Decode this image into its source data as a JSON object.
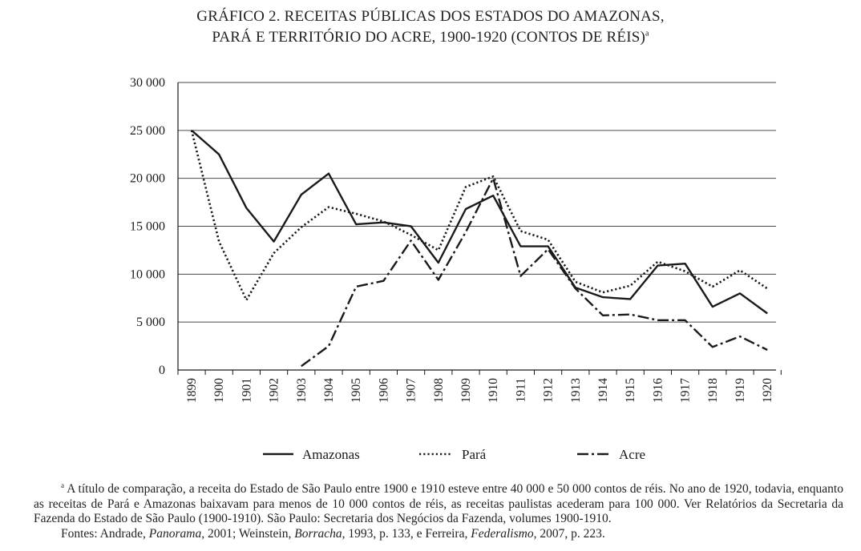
{
  "page": {
    "title_line1": "GRÁFICO 2. RECEITAS PÚBLICAS DOS ESTADOS DO AMAZONAS,",
    "title_line2": "PARÁ E TERRITÓRIO DO ACRE, 1900-1920 (CONTOS DE RÉIS)",
    "title_footnote_marker": "a",
    "footnote_marker": "a",
    "footnote_text": "A título de comparação, a receita do Estado de São Paulo entre 1900 e 1910 esteve entre 40 000 e 50 000 contos de réis. No ano de 1920, todavia, enquanto as receitas de Pará e Amazonas baixavam para menos de 10 000 contos de réis, as receitas paulistas acederam para 100 000. Ver Relatórios da Secretaria da Fazenda do Estado de São Paulo (1900-1910). São Paulo: Secretaria dos Negócios da Fazenda, volumes 1900-1910.",
    "sources_prefix": "Fontes: Andrade, ",
    "source1_title": "Panorama",
    "source1_rest": ", 2001; Weinstein, ",
    "source2_title": "Borracha",
    "source2_rest": ", 1993, p. 133, e Ferreira, ",
    "source3_title": "Federalismo",
    "source3_rest": ", 2007, p. 223."
  },
  "chart_data": {
    "type": "line",
    "title": "GRÁFICO 2. RECEITAS PÚBLICAS DOS ESTADOS DO AMAZONAS, PARÁ E TERRITÓRIO DO ACRE, 1900-1920 (CONTOS DE RÉIS)",
    "xlabel": "",
    "ylabel": "",
    "x": [
      "1899",
      "1900",
      "1901",
      "1902",
      "1903",
      "1904",
      "1905",
      "1906",
      "1907",
      "1908",
      "1909",
      "1910",
      "1911",
      "1912",
      "1913",
      "1914",
      "1915",
      "1916",
      "1917",
      "1918",
      "1919",
      "1920"
    ],
    "ylim": [
      0,
      30000
    ],
    "y_ticks": [
      0,
      5000,
      10000,
      15000,
      20000,
      25000,
      30000
    ],
    "y_tick_labels": [
      "0",
      "5 000",
      "10 000",
      "15 000",
      "20 000",
      "25 000",
      "30 000"
    ],
    "grid": "horizontal",
    "legend_position": "bottom",
    "series": [
      {
        "name": "Amazonas",
        "style": "solid",
        "color": "#1a1a1a",
        "values": [
          25000,
          22500,
          16900,
          13400,
          18300,
          20500,
          15200,
          15400,
          15000,
          11200,
          16800,
          18200,
          12900,
          12900,
          8600,
          7600,
          7400,
          10900,
          11100,
          6600,
          8000,
          5900
        ]
      },
      {
        "name": "Pará",
        "style": "dotted",
        "color": "#1a1a1a",
        "values": [
          25000,
          13400,
          7300,
          12200,
          14900,
          17000,
          16300,
          15500,
          14100,
          12500,
          19100,
          20200,
          14500,
          13600,
          9200,
          8100,
          8800,
          11300,
          10300,
          8700,
          10400,
          8500
        ]
      },
      {
        "name": "Acre",
        "style": "dashdot",
        "color": "#1a1a1a",
        "values": [
          null,
          null,
          null,
          null,
          400,
          2500,
          8700,
          9300,
          13500,
          9400,
          14400,
          20000,
          9800,
          12600,
          8500,
          5700,
          5800,
          5200,
          5200,
          2400,
          3500,
          2100
        ]
      }
    ]
  }
}
